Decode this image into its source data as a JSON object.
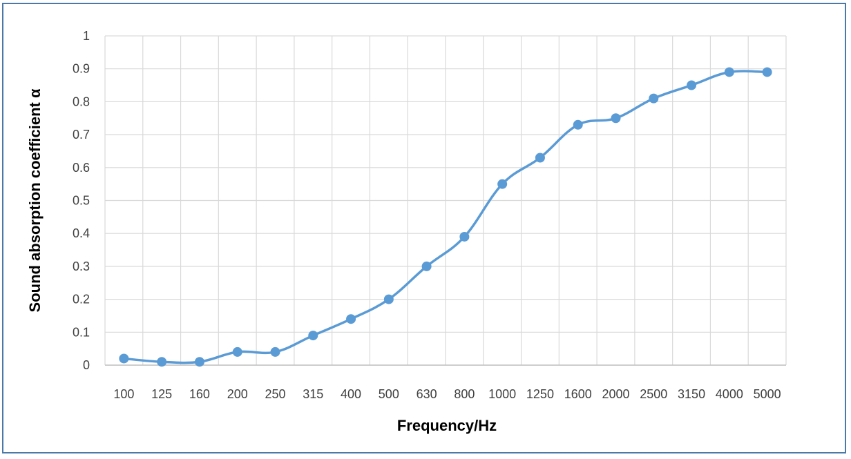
{
  "chart_data": {
    "type": "line",
    "title": "",
    "xlabel": "Frequency/Hz",
    "ylabel": "Sound absorption  coefficient  α",
    "categories": [
      "100",
      "125",
      "160",
      "200",
      "250",
      "315",
      "400",
      "500",
      "630",
      "800",
      "1000",
      "1250",
      "1600",
      "2000",
      "2500",
      "3150",
      "4000",
      "5000"
    ],
    "series": [
      {
        "values": [
          0.02,
          0.01,
          0.01,
          0.04,
          0.04,
          0.09,
          0.14,
          0.2,
          0.3,
          0.39,
          0.55,
          0.63,
          0.73,
          0.75,
          0.81,
          0.85,
          0.89,
          0.89
        ]
      }
    ],
    "ylim": [
      0,
      1
    ],
    "yticks": [
      "0",
      "0.1",
      "0.2",
      "0.3",
      "0.4",
      "0.5",
      "0.6",
      "0.7",
      "0.8",
      "0.9",
      "1"
    ],
    "grid": true,
    "legend": "none",
    "colors": {
      "line": "#5b9bd5",
      "grid": "#d9d9d9",
      "frame": "#4a78a8"
    }
  }
}
